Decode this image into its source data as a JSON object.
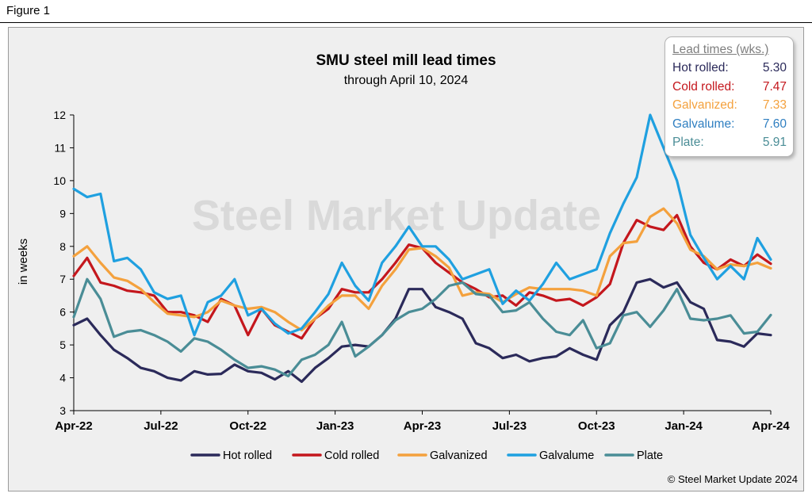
{
  "figure_label": "Figure 1",
  "copyright": "© Steel Market Update 2024",
  "watermark": "Steel Market Update",
  "lead_box": {
    "title": "Lead times (wks.)",
    "rows": [
      {
        "label": "Hot rolled:",
        "value": "5.30",
        "color": "#2b2a5a"
      },
      {
        "label": "Cold rolled:",
        "value": "7.47",
        "color": "#c4171d"
      },
      {
        "label": "Galvanized:",
        "value": "7.33",
        "color": "#f4a13d"
      },
      {
        "label": "Galvalume:",
        "value": "7.60",
        "color": "#2f7fc1"
      },
      {
        "label": "Plate:",
        "value": "5.91",
        "color": "#4a8d96"
      }
    ]
  },
  "chart_data": {
    "type": "line",
    "title": "SMU steel mill lead times",
    "subtitle": "through April 10, 2024",
    "xlabel": "",
    "ylabel": "in weeks",
    "ylim": [
      3,
      12
    ],
    "yticks": [
      "3",
      "4",
      "5",
      "6",
      "7",
      "8",
      "9",
      "10",
      "11",
      "12"
    ],
    "x_tick_labels": [
      "Apr-22",
      "Jul-22",
      "Oct-22",
      "Jan-23",
      "Apr-23",
      "Jul-23",
      "Oct-23",
      "Jan-24",
      "Apr-24"
    ],
    "points_per_series": 53,
    "legend_position": "bottom",
    "series": [
      {
        "name": "Hot rolled",
        "color": "#2b2a5a",
        "values": [
          5.6,
          5.8,
          5.3,
          4.85,
          4.6,
          4.3,
          4.2,
          4.0,
          3.92,
          4.2,
          4.1,
          4.12,
          4.4,
          4.2,
          4.15,
          3.95,
          4.2,
          3.88,
          4.3,
          4.6,
          4.95,
          5.0,
          4.95,
          5.3,
          5.8,
          6.7,
          6.7,
          6.15,
          6.0,
          5.8,
          5.05,
          4.9,
          4.6,
          4.7,
          4.5,
          4.6,
          4.65,
          4.9,
          4.7,
          4.55,
          5.6,
          6.0,
          6.9,
          7.0,
          6.75,
          6.9,
          6.3,
          6.1,
          5.15,
          5.1,
          4.95,
          5.35,
          5.3
        ]
      },
      {
        "name": "Cold rolled",
        "color": "#c4171d",
        "values": [
          7.1,
          7.65,
          6.9,
          6.8,
          6.65,
          6.6,
          6.5,
          6.0,
          6.0,
          5.9,
          5.7,
          6.4,
          6.2,
          5.3,
          6.1,
          5.6,
          5.4,
          5.2,
          5.8,
          6.1,
          6.7,
          6.6,
          6.6,
          7.0,
          7.5,
          8.05,
          7.95,
          7.5,
          7.2,
          6.9,
          6.7,
          6.45,
          6.5,
          6.2,
          6.6,
          6.5,
          6.35,
          6.4,
          6.2,
          6.45,
          6.85,
          8.1,
          8.8,
          8.6,
          8.5,
          8.95,
          8.0,
          7.5,
          7.3,
          7.6,
          7.4,
          7.75,
          7.47
        ]
      },
      {
        "name": "Galvanized",
        "color": "#f4a13d",
        "values": [
          7.7,
          8.0,
          7.5,
          7.05,
          6.95,
          6.7,
          6.3,
          5.95,
          5.9,
          5.85,
          6.0,
          6.35,
          6.2,
          6.1,
          6.15,
          6.0,
          5.7,
          5.45,
          5.8,
          6.2,
          6.5,
          6.5,
          6.1,
          6.8,
          7.3,
          7.9,
          7.95,
          7.7,
          7.35,
          6.5,
          6.6,
          6.55,
          6.3,
          6.55,
          6.75,
          6.7,
          6.7,
          6.7,
          6.65,
          6.5,
          7.7,
          8.1,
          8.15,
          8.9,
          9.15,
          8.7,
          7.9,
          7.7,
          7.3,
          7.45,
          7.4,
          7.5,
          7.33
        ]
      },
      {
        "name": "Galvalume",
        "color": "#1fa0e0",
        "values": [
          9.75,
          9.5,
          9.6,
          7.55,
          7.65,
          7.3,
          6.6,
          6.4,
          6.5,
          5.3,
          6.3,
          6.5,
          7.0,
          5.9,
          6.1,
          5.65,
          5.35,
          5.5,
          6.0,
          6.55,
          7.5,
          6.8,
          6.35,
          7.5,
          8.0,
          8.6,
          8.0,
          8.0,
          7.6,
          7.0,
          7.15,
          7.3,
          6.25,
          6.65,
          6.35,
          6.85,
          7.5,
          7.0,
          7.15,
          7.3,
          8.4,
          9.3,
          10.1,
          12.0,
          11.0,
          10.0,
          8.35,
          7.65,
          7.0,
          7.4,
          7.0,
          8.25,
          7.6
        ]
      },
      {
        "name": "Plate",
        "color": "#4a8d96",
        "values": [
          5.85,
          7.0,
          6.4,
          5.25,
          5.4,
          5.45,
          5.3,
          5.1,
          4.8,
          5.2,
          5.1,
          4.85,
          4.55,
          4.3,
          4.35,
          4.25,
          4.05,
          4.55,
          4.7,
          5.0,
          5.7,
          4.65,
          4.95,
          5.3,
          5.75,
          6.0,
          6.1,
          6.4,
          6.8,
          6.9,
          6.55,
          6.5,
          6.0,
          6.05,
          6.3,
          5.8,
          5.4,
          5.3,
          5.75,
          4.9,
          5.05,
          5.9,
          6.0,
          5.55,
          6.05,
          6.7,
          5.8,
          5.75,
          5.8,
          5.9,
          5.35,
          5.4,
          5.91
        ]
      }
    ]
  }
}
